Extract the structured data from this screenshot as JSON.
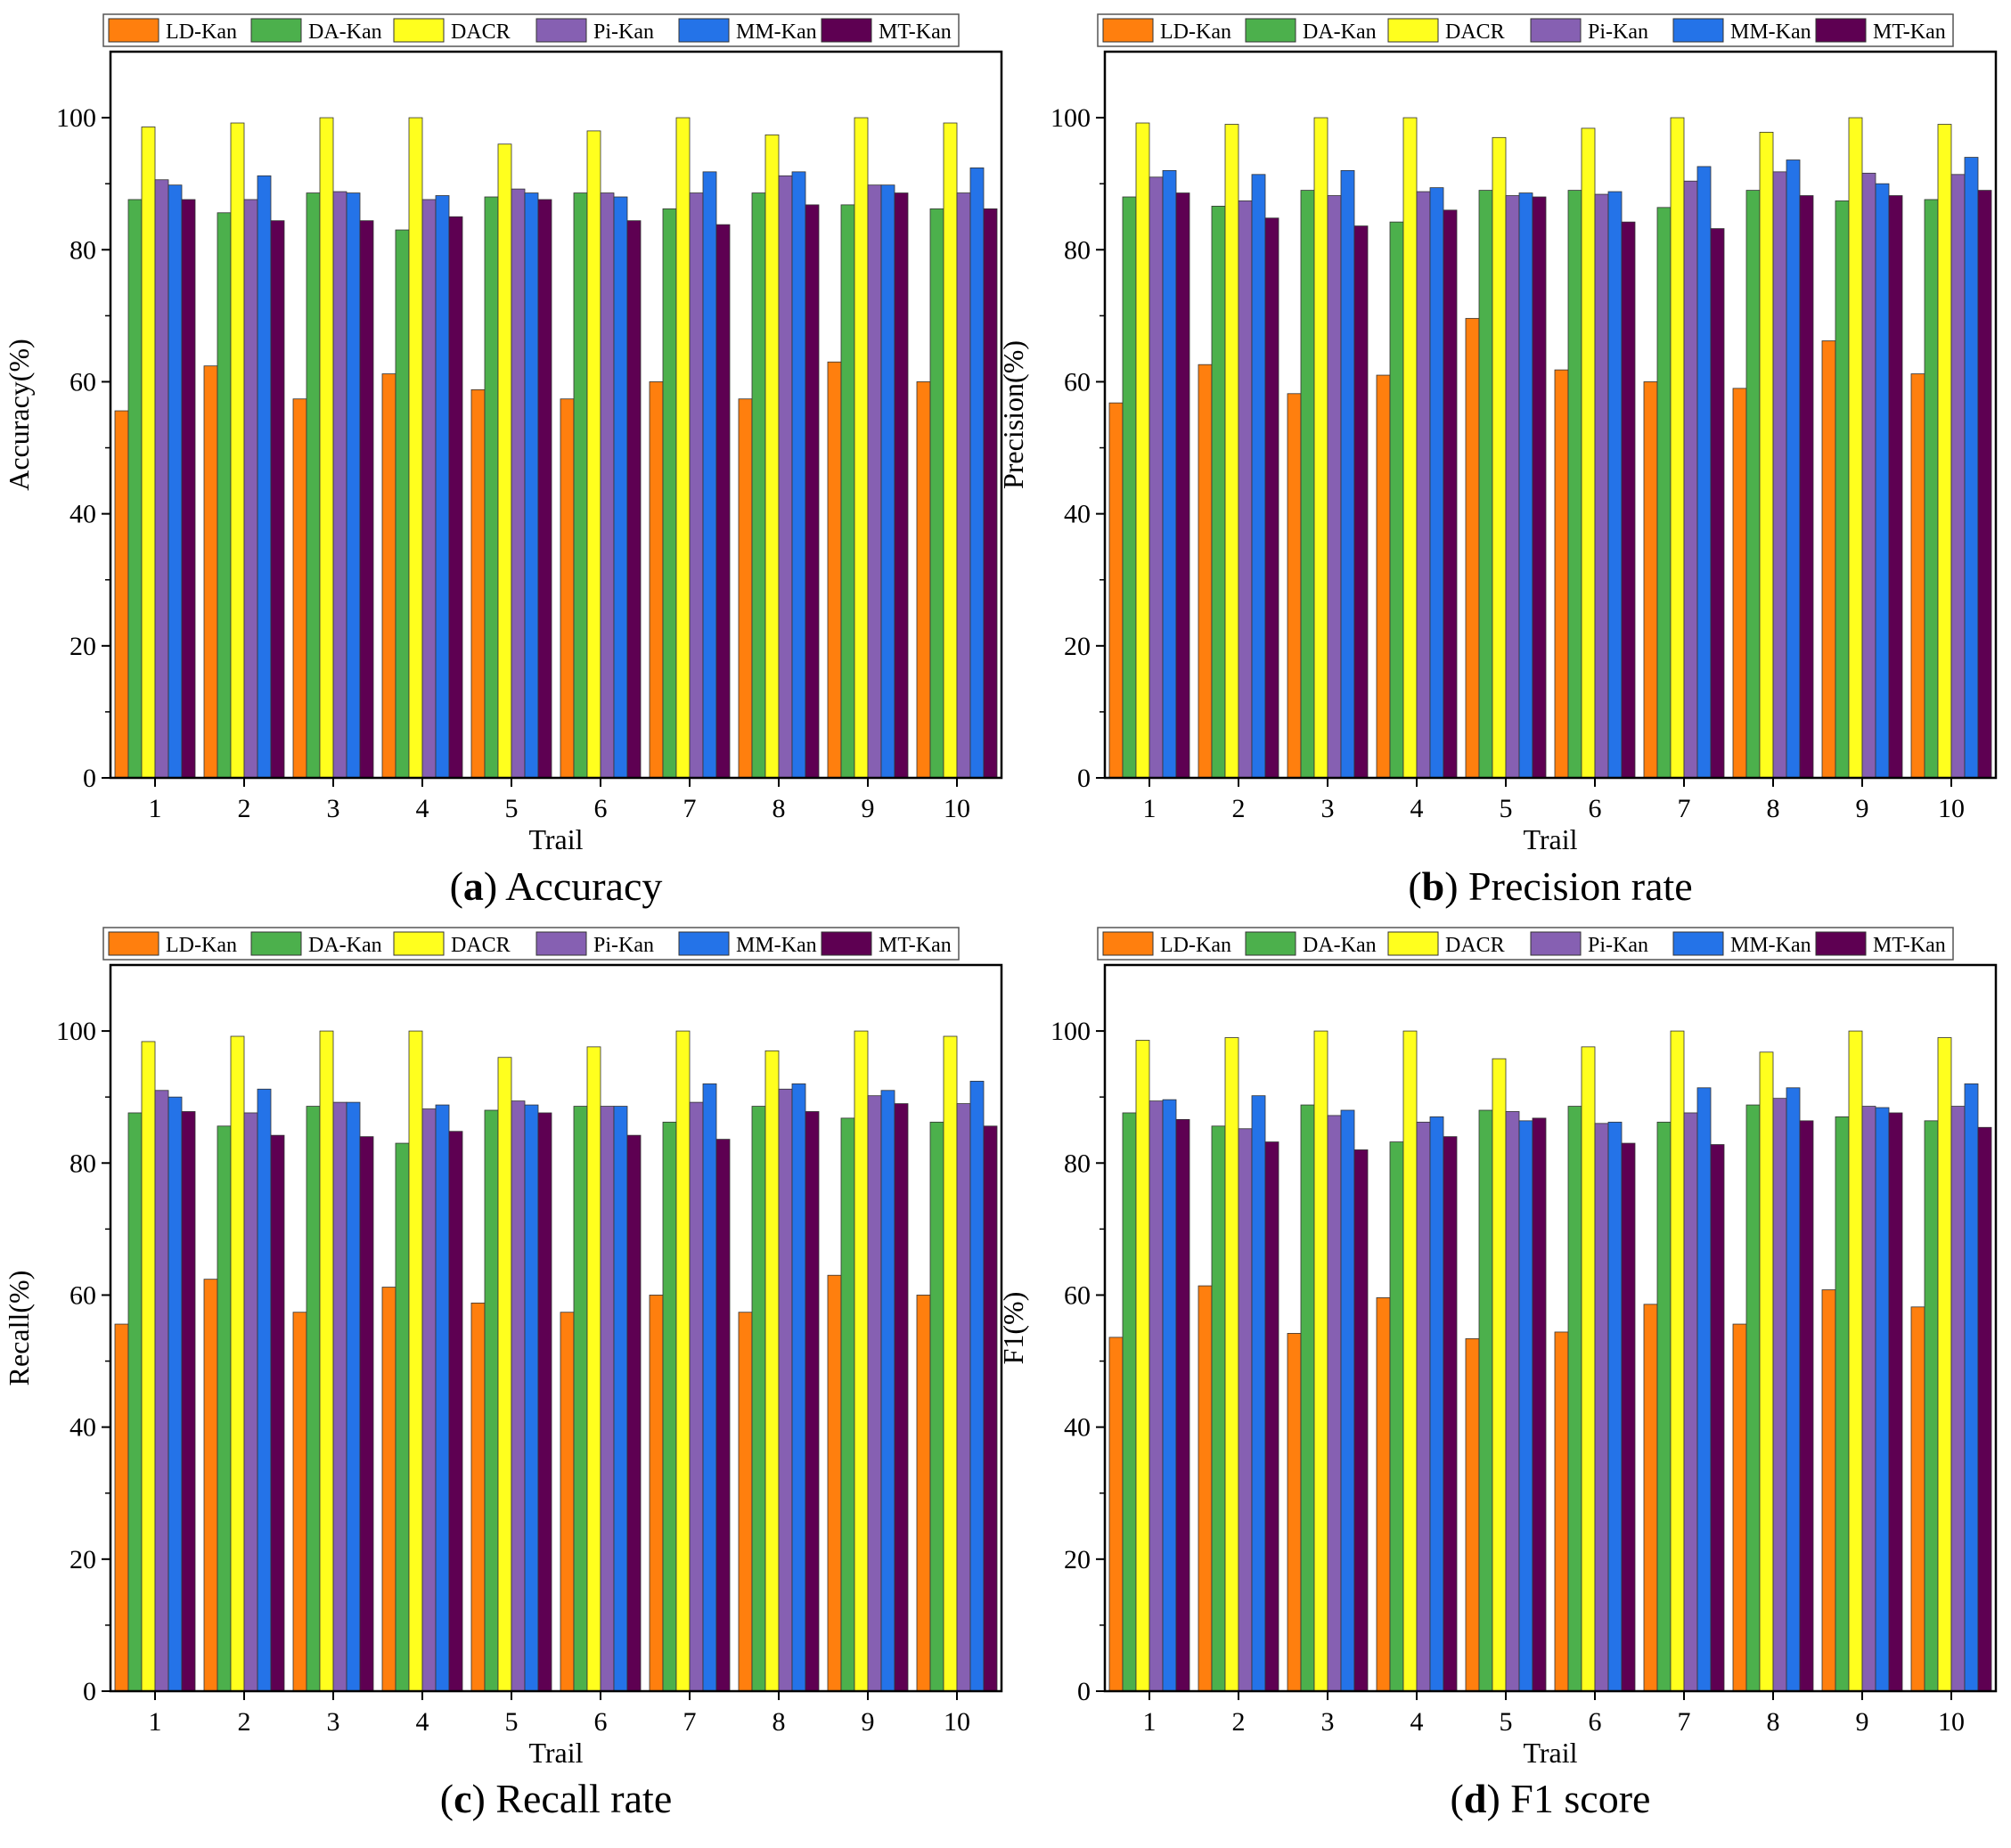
{
  "series_names": [
    "LD-Kan",
    "DA-Kan",
    "DACR",
    "Pi-Kan",
    "MM-Kan",
    "MT-Kan"
  ],
  "series_colors": [
    "#FF7F0E",
    "#4CB04C",
    "#FFFF1E",
    "#8660B2",
    "#2473E8",
    "#5E0052"
  ],
  "chart_data": [
    {
      "type": "bar",
      "caption_letter": "a",
      "caption_text": " Accuracy",
      "xlabel": "Trail",
      "ylabel": "Accuracy(%)",
      "ylim": [
        0,
        110
      ],
      "yticks": [
        0,
        20,
        40,
        60,
        80,
        100
      ],
      "categories": [
        "1",
        "2",
        "3",
        "4",
        "5",
        "6",
        "7",
        "8",
        "9",
        "10"
      ],
      "series": [
        {
          "name": "LD-Kan",
          "values": [
            55.6,
            62.4,
            57.4,
            61.2,
            58.8,
            57.4,
            60.0,
            57.4,
            63.0,
            60.0
          ]
        },
        {
          "name": "DA-Kan",
          "values": [
            87.6,
            85.6,
            88.6,
            83.0,
            88.0,
            88.6,
            86.2,
            88.6,
            86.8,
            86.2
          ]
        },
        {
          "name": "DACR",
          "values": [
            98.6,
            99.2,
            100.0,
            100.0,
            96.0,
            98.0,
            100.0,
            97.4,
            100.0,
            99.2
          ]
        },
        {
          "name": "Pi-Kan",
          "values": [
            90.6,
            87.6,
            88.8,
            87.6,
            89.2,
            88.6,
            88.6,
            91.2,
            89.8,
            88.6
          ]
        },
        {
          "name": "MM-Kan",
          "values": [
            89.8,
            91.2,
            88.6,
            88.2,
            88.6,
            88.0,
            91.8,
            91.8,
            89.8,
            92.4
          ]
        },
        {
          "name": "MT-Kan",
          "values": [
            87.6,
            84.4,
            84.4,
            85.0,
            87.6,
            84.4,
            83.8,
            86.8,
            88.6,
            86.2
          ]
        }
      ]
    },
    {
      "type": "bar",
      "caption_letter": "b",
      "caption_text": " Precision rate",
      "xlabel": "Trail",
      "ylabel": "Precision(%)",
      "ylim": [
        0,
        110
      ],
      "yticks": [
        0,
        20,
        40,
        60,
        80,
        100
      ],
      "categories": [
        "1",
        "2",
        "3",
        "4",
        "5",
        "6",
        "7",
        "8",
        "9",
        "10"
      ],
      "series": [
        {
          "name": "LD-Kan",
          "values": [
            56.8,
            62.6,
            58.2,
            61.0,
            69.6,
            61.8,
            60.0,
            59.0,
            66.2,
            61.2
          ]
        },
        {
          "name": "DA-Kan",
          "values": [
            88.0,
            86.6,
            89.0,
            84.2,
            89.0,
            89.0,
            86.4,
            89.0,
            87.4,
            87.6
          ]
        },
        {
          "name": "DACR",
          "values": [
            99.2,
            99.0,
            100.0,
            100.0,
            97.0,
            98.4,
            100.0,
            97.8,
            100.0,
            99.0
          ]
        },
        {
          "name": "Pi-Kan",
          "values": [
            91.0,
            87.4,
            88.2,
            88.8,
            88.2,
            88.4,
            90.4,
            91.8,
            91.6,
            91.4
          ]
        },
        {
          "name": "MM-Kan",
          "values": [
            92.0,
            91.4,
            92.0,
            89.4,
            88.6,
            88.8,
            92.6,
            93.6,
            90.0,
            94.0
          ]
        },
        {
          "name": "MT-Kan",
          "values": [
            88.6,
            84.8,
            83.6,
            86.0,
            88.0,
            84.2,
            83.2,
            88.2,
            88.2,
            89.0
          ]
        }
      ]
    },
    {
      "type": "bar",
      "caption_letter": "c",
      "caption_text": " Recall rate",
      "xlabel": "Trail",
      "ylabel": "Recall(%)",
      "ylim": [
        0,
        110
      ],
      "yticks": [
        0,
        20,
        40,
        60,
        80,
        100
      ],
      "categories": [
        "1",
        "2",
        "3",
        "4",
        "5",
        "6",
        "7",
        "8",
        "9",
        "10"
      ],
      "series": [
        {
          "name": "LD-Kan",
          "values": [
            55.6,
            62.4,
            57.4,
            61.2,
            58.8,
            57.4,
            60.0,
            57.4,
            63.0,
            60.0
          ]
        },
        {
          "name": "DA-Kan",
          "values": [
            87.6,
            85.6,
            88.6,
            83.0,
            88.0,
            88.6,
            86.2,
            88.6,
            86.8,
            86.2
          ]
        },
        {
          "name": "DACR",
          "values": [
            98.4,
            99.2,
            100.0,
            100.0,
            96.0,
            97.6,
            100.0,
            97.0,
            100.0,
            99.2
          ]
        },
        {
          "name": "Pi-Kan",
          "values": [
            91.0,
            87.6,
            89.2,
            88.2,
            89.4,
            88.6,
            89.2,
            91.2,
            90.2,
            89.0
          ]
        },
        {
          "name": "MM-Kan",
          "values": [
            90.0,
            91.2,
            89.2,
            88.8,
            88.8,
            88.6,
            92.0,
            92.0,
            91.0,
            92.4
          ]
        },
        {
          "name": "MT-Kan",
          "values": [
            87.8,
            84.2,
            84.0,
            84.8,
            87.6,
            84.2,
            83.6,
            87.8,
            89.0,
            85.6
          ]
        }
      ]
    },
    {
      "type": "bar",
      "caption_letter": "d",
      "caption_text": " F1 score",
      "xlabel": "Trail",
      "ylabel": "F1(%)",
      "ylim": [
        0,
        110
      ],
      "yticks": [
        0,
        20,
        40,
        60,
        80,
        100
      ],
      "categories": [
        "1",
        "2",
        "3",
        "4",
        "5",
        "6",
        "7",
        "8",
        "9",
        "10"
      ],
      "series": [
        {
          "name": "LD-Kan",
          "values": [
            53.6,
            61.4,
            54.2,
            59.6,
            53.4,
            54.4,
            58.6,
            55.6,
            60.8,
            58.2
          ]
        },
        {
          "name": "DA-Kan",
          "values": [
            87.6,
            85.6,
            88.8,
            83.2,
            88.0,
            88.6,
            86.2,
            88.8,
            87.0,
            86.4
          ]
        },
        {
          "name": "DACR",
          "values": [
            98.6,
            99.0,
            100.0,
            100.0,
            95.8,
            97.6,
            100.0,
            96.8,
            100.0,
            99.0
          ]
        },
        {
          "name": "Pi-Kan",
          "values": [
            89.4,
            85.2,
            87.2,
            86.2,
            87.8,
            86.0,
            87.6,
            89.8,
            88.6,
            88.6
          ]
        },
        {
          "name": "MM-Kan",
          "values": [
            89.6,
            90.2,
            88.0,
            87.0,
            86.4,
            86.2,
            91.4,
            91.4,
            88.4,
            92.0
          ]
        },
        {
          "name": "MT-Kan",
          "values": [
            86.6,
            83.2,
            82.0,
            84.0,
            86.8,
            83.0,
            82.8,
            86.4,
            87.6,
            85.4
          ]
        }
      ]
    }
  ]
}
